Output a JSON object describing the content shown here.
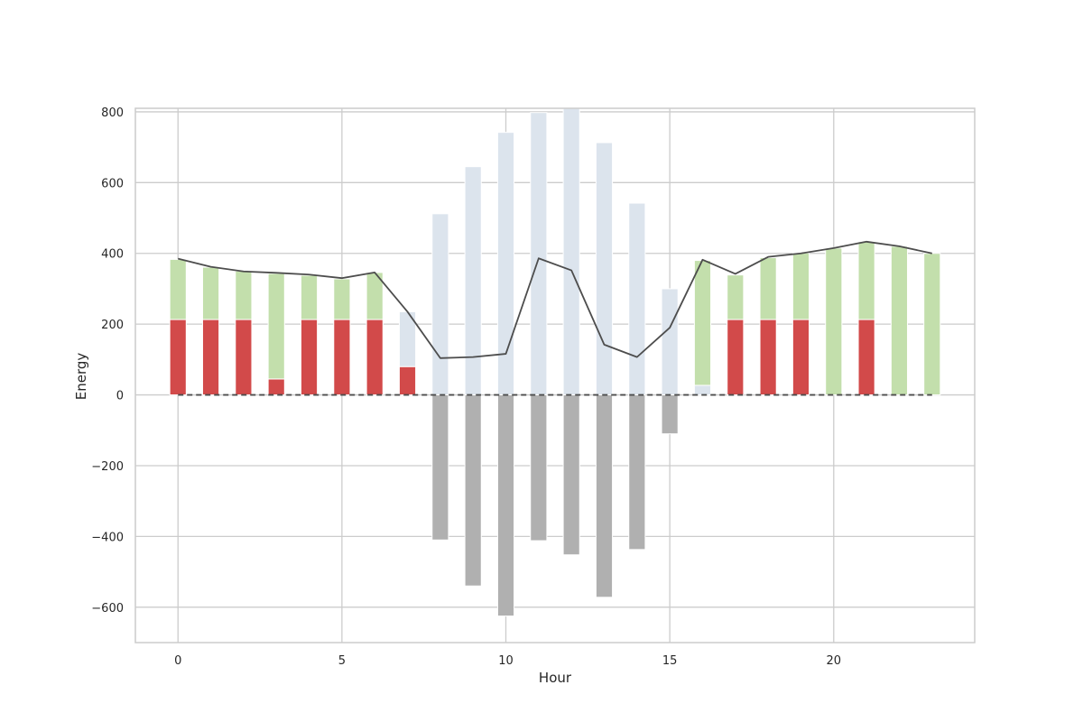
{
  "chart_data": {
    "type": "bar",
    "title": "",
    "xlabel": "Hour",
    "ylabel": "Energy",
    "xlim": [
      -1.3,
      24.3
    ],
    "ylim": [
      -700,
      810
    ],
    "x_ticks": [
      0,
      5,
      10,
      15,
      20
    ],
    "y_ticks": [
      -600,
      -400,
      -200,
      0,
      200,
      400,
      600,
      800
    ],
    "grid": true,
    "x": [
      0,
      1,
      2,
      3,
      4,
      5,
      6,
      7,
      8,
      9,
      10,
      11,
      12,
      13,
      14,
      15,
      16,
      17,
      18,
      19,
      20,
      21,
      22,
      23
    ],
    "stacked_bars": [
      {
        "color": "#d24a4a",
        "values": [
          213,
          213,
          213,
          45,
          213,
          213,
          213,
          80,
          0,
          0,
          0,
          0,
          0,
          0,
          0,
          0,
          0,
          213,
          213,
          213,
          0,
          213,
          0,
          0
        ]
      },
      {
        "color": "#dce4ed",
        "values": [
          0,
          0,
          0,
          0,
          0,
          0,
          0,
          155,
          512,
          645,
          742,
          798,
          810,
          713,
          542,
          300,
          27,
          0,
          0,
          0,
          0,
          0,
          0,
          0
        ]
      },
      {
        "color": "#c3dfac",
        "values": [
          170,
          148,
          137,
          298,
          125,
          115,
          133,
          0,
          0,
          0,
          0,
          0,
          0,
          0,
          0,
          0,
          353,
          126,
          175,
          188,
          415,
          220,
          420,
          400
        ]
      },
      {
        "color": "#b0b0b0",
        "values": [
          0,
          0,
          0,
          0,
          0,
          0,
          0,
          0,
          -410,
          -540,
          -625,
          -412,
          -452,
          -572,
          -437,
          -110,
          0,
          0,
          0,
          0,
          0,
          0,
          0,
          0
        ]
      }
    ],
    "line_series": [
      {
        "color": "#4d4d4d",
        "dashed": false,
        "values": [
          385,
          362,
          349,
          345,
          340,
          330,
          346,
          235,
          104,
          107,
          116,
          386,
          352,
          142,
          107,
          190,
          382,
          342,
          390,
          400,
          415,
          433,
          420,
          400
        ]
      },
      {
        "color": "#4d4d4d",
        "dashed": true,
        "values": [
          0,
          0,
          0,
          0,
          0,
          0,
          0,
          0,
          0,
          0,
          0,
          0,
          0,
          0,
          0,
          0,
          0,
          0,
          0,
          0,
          0,
          0,
          0,
          0
        ]
      }
    ]
  }
}
